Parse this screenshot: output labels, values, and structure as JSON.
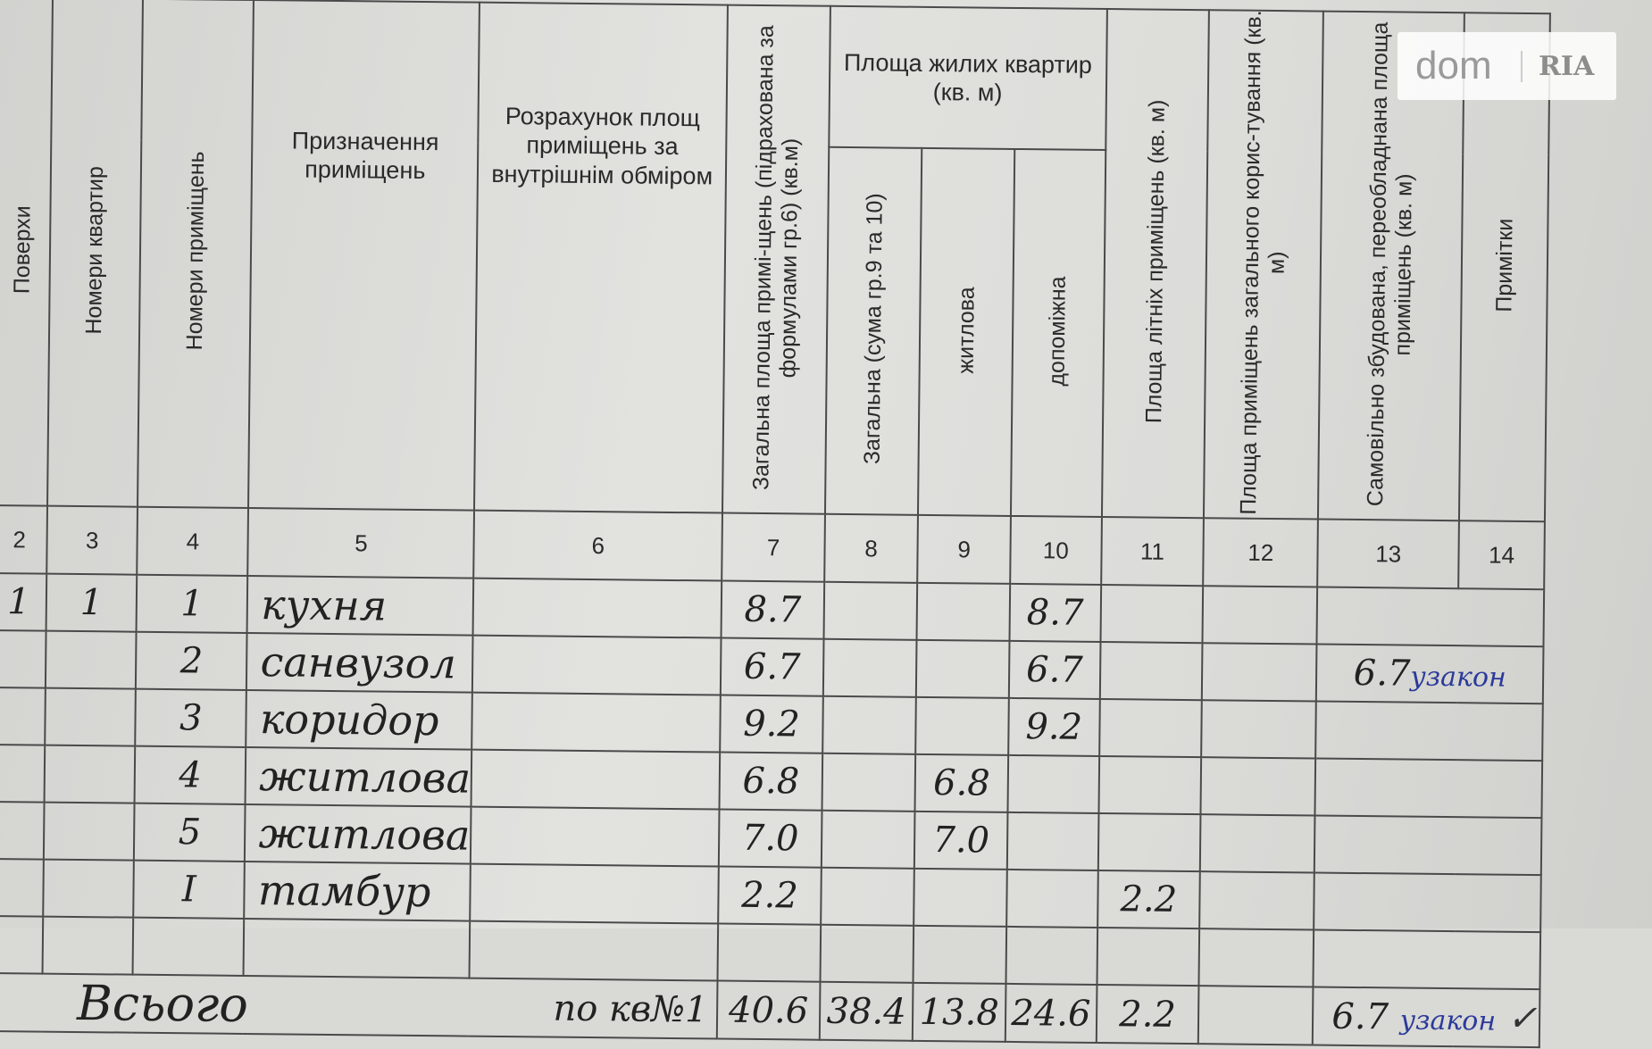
{
  "headers": {
    "c2": "Поверхи",
    "c3": "Номери квартир",
    "c4": "Номери приміщень",
    "c5": "Призначення приміщень",
    "c6": "Розрахунок площ приміщень за внутрішнім обміром",
    "c7": "Загальна площа примі-щень (підрахована за формулами гр.6) (кв.м)",
    "group": "Площа жилих квартир (кв. м)",
    "c8": "Загальна (сума гр.9 та 10)",
    "c9": "житлова",
    "c10": "допоміжна",
    "c11": "Площа літніх приміщень (кв. м)",
    "c12": "Площа приміщень загального корис-тування (кв. м)",
    "c13": "Самовільно збудована, переобладнана площа приміщень (кв. м)",
    "c14": "Примітки"
  },
  "column_numbers": [
    "2",
    "3",
    "4",
    "5",
    "6",
    "7",
    "8",
    "9",
    "10",
    "11",
    "12",
    "13",
    "14"
  ],
  "rows": [
    {
      "floor": "1",
      "apt": "1",
      "room": "1",
      "purpose": "кухня",
      "total": "8.7",
      "living_total": "",
      "living": "",
      "aux": "8.7",
      "summer": "",
      "common": "",
      "unauth": "",
      "unauth_note": ""
    },
    {
      "floor": "",
      "apt": "",
      "room": "2",
      "purpose": "санвузол",
      "total": "6.7",
      "living_total": "",
      "living": "",
      "aux": "6.7",
      "summer": "",
      "common": "",
      "unauth": "6.7",
      "unauth_note": "узакон"
    },
    {
      "floor": "",
      "apt": "",
      "room": "3",
      "purpose": "коридор",
      "total": "9.2",
      "living_total": "",
      "living": "",
      "aux": "9.2",
      "summer": "",
      "common": "",
      "unauth": "",
      "unauth_note": ""
    },
    {
      "floor": "",
      "apt": "",
      "room": "4",
      "purpose": "житлова",
      "total": "6.8",
      "living_total": "",
      "living": "6.8",
      "aux": "",
      "summer": "",
      "common": "",
      "unauth": "",
      "unauth_note": ""
    },
    {
      "floor": "",
      "apt": "",
      "room": "5",
      "purpose": "житлова",
      "total": "7.0",
      "living_total": "",
      "living": "7.0",
      "aux": "",
      "summer": "",
      "common": "",
      "unauth": "",
      "unauth_note": ""
    },
    {
      "floor": "",
      "apt": "",
      "room": "І",
      "purpose": "тамбур",
      "total": "2.2",
      "living_total": "",
      "living": "",
      "aux": "",
      "summer": "2.2",
      "common": "",
      "unauth": "",
      "unauth_note": ""
    },
    {
      "floor": "",
      "apt": "",
      "room": "",
      "purpose": "",
      "total": "",
      "living_total": "",
      "living": "",
      "aux": "",
      "summer": "",
      "common": "",
      "unauth": "",
      "unauth_note": ""
    }
  ],
  "totals": {
    "label": "Всього",
    "label2": "по кв№1",
    "total": "40.6",
    "living_total": "38.4",
    "living": "13.8",
    "aux": "24.6",
    "summer": "2.2",
    "unauth": "6.7",
    "unauth_note": "узакон",
    "check": "✓"
  },
  "watermark": {
    "left": "dom",
    "right": "RIA"
  }
}
